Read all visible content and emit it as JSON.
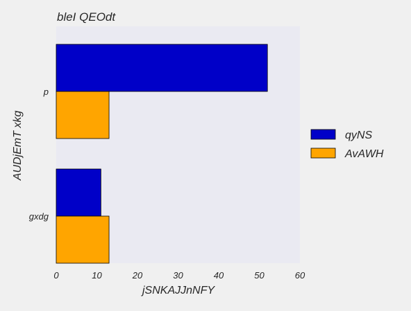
{
  "chart_data": {
    "type": "bar",
    "orientation": "horizontal",
    "title": "bleI QEOdt",
    "xlabel": "jSNKAJJnNFY",
    "ylabel": "AUDjEmT xkg",
    "categories": [
      "p",
      "gxdg"
    ],
    "series": [
      {
        "name": "qyNS",
        "values": [
          52,
          11
        ],
        "color": "#0000c8"
      },
      {
        "name": "AvAWH",
        "values": [
          13,
          13
        ],
        "color": "#ffa500"
      }
    ],
    "xlim": [
      0,
      60
    ],
    "xticks": [
      0,
      10,
      20,
      30,
      40,
      50,
      60
    ],
    "grid": false,
    "legend": "right",
    "colors": {
      "plot_bg": "#eaeaf2",
      "figure_bg": "#f0f0f0"
    }
  }
}
